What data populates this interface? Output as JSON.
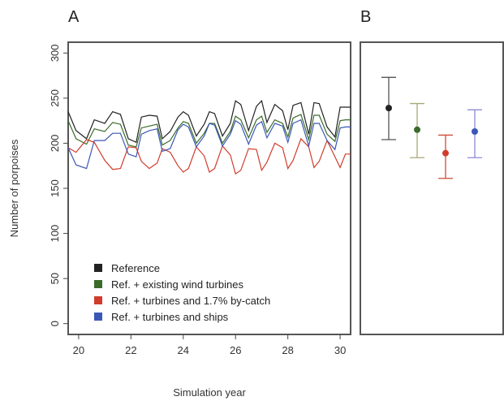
{
  "panels": {
    "a_label": "A",
    "b_label": "B"
  },
  "chart_data": [
    {
      "panel": "A",
      "type": "line",
      "xlabel": "Simulation year",
      "ylabel": "Number of porpoises",
      "xlim": [
        19.6,
        30.4
      ],
      "ylim": [
        -12,
        312
      ],
      "xticks": [
        20,
        22,
        24,
        26,
        28,
        30
      ],
      "yticks": [
        0,
        50,
        100,
        150,
        200,
        250,
        300
      ],
      "grid": false,
      "legend_position": "bottom-left",
      "series": [
        {
          "name": "Reference",
          "color": "#222222",
          "x": [
            19.6,
            19.9,
            20.3,
            20.6,
            21.0,
            21.3,
            21.6,
            21.9,
            22.2,
            22.4,
            22.7,
            23.0,
            23.2,
            23.5,
            23.8,
            24.0,
            24.2,
            24.5,
            24.8,
            25.0,
            25.2,
            25.5,
            25.8,
            26.0,
            26.2,
            26.5,
            26.8,
            27.0,
            27.2,
            27.5,
            27.8,
            28.0,
            28.2,
            28.5,
            28.8,
            29.0,
            29.2,
            29.5,
            29.8,
            30.0,
            30.2,
            30.4
          ],
          "y": [
            235,
            214,
            205,
            226,
            222,
            235,
            232,
            205,
            201,
            229,
            231,
            230,
            205,
            213,
            229,
            235,
            231,
            208,
            221,
            235,
            233,
            208,
            222,
            247,
            243,
            214,
            241,
            247,
            223,
            243,
            236,
            215,
            242,
            245,
            210,
            245,
            244,
            218,
            207,
            240,
            240,
            240
          ]
        },
        {
          "name": "Ref. + existing wind turbines",
          "color": "#3a6b2a",
          "x": [
            19.6,
            19.9,
            20.3,
            20.6,
            21.0,
            21.3,
            21.6,
            21.9,
            22.2,
            22.4,
            22.7,
            23.0,
            23.2,
            23.5,
            23.8,
            24.0,
            24.2,
            24.5,
            24.8,
            25.0,
            25.2,
            25.5,
            25.8,
            26.0,
            26.2,
            26.5,
            26.8,
            27.0,
            27.2,
            27.5,
            27.8,
            28.0,
            28.2,
            28.5,
            28.8,
            29.0,
            29.2,
            29.5,
            29.8,
            30.0,
            30.2,
            30.4
          ],
          "y": [
            225,
            205,
            199,
            216,
            213,
            223,
            221,
            198,
            196,
            217,
            219,
            221,
            198,
            203,
            217,
            224,
            222,
            200,
            211,
            222,
            222,
            200,
            213,
            230,
            226,
            206,
            226,
            230,
            212,
            226,
            222,
            207,
            228,
            232,
            204,
            231,
            231,
            210,
            202,
            225,
            226,
            226
          ]
        },
        {
          "name": "Ref. + turbines and 1.7% by-catch",
          "color": "#d03c2c",
          "x": [
            19.6,
            19.9,
            20.3,
            20.6,
            21.0,
            21.3,
            21.6,
            21.9,
            22.2,
            22.4,
            22.7,
            23.0,
            23.2,
            23.5,
            23.8,
            24.0,
            24.2,
            24.5,
            24.8,
            25.0,
            25.2,
            25.5,
            25.8,
            26.0,
            26.2,
            26.5,
            26.8,
            27.0,
            27.2,
            27.5,
            27.8,
            28.0,
            28.2,
            28.5,
            28.8,
            29.0,
            29.2,
            29.5,
            29.8,
            30.0,
            30.2,
            30.4
          ],
          "y": [
            195,
            190,
            204,
            201,
            181,
            171,
            172,
            196,
            195,
            180,
            172,
            178,
            194,
            190,
            175,
            168,
            172,
            196,
            186,
            168,
            172,
            197,
            187,
            166,
            170,
            194,
            193,
            170,
            179,
            200,
            195,
            172,
            181,
            205,
            196,
            173,
            180,
            203,
            185,
            173,
            188,
            188
          ]
        },
        {
          "name": "Ref. + turbines and ships",
          "color": "#3b57b6",
          "x": [
            19.6,
            19.9,
            20.3,
            20.6,
            21.0,
            21.3,
            21.6,
            21.9,
            22.2,
            22.4,
            22.7,
            23.0,
            23.2,
            23.5,
            23.8,
            24.0,
            24.2,
            24.5,
            24.8,
            25.0,
            25.2,
            25.5,
            25.8,
            26.0,
            26.2,
            26.5,
            26.8,
            27.0,
            27.2,
            27.5,
            27.8,
            28.0,
            28.2,
            28.5,
            28.8,
            29.0,
            29.2,
            29.5,
            29.8,
            30.0,
            30.2,
            30.4
          ],
          "y": [
            195,
            176,
            172,
            203,
            203,
            211,
            211,
            188,
            185,
            210,
            214,
            216,
            191,
            194,
            215,
            221,
            218,
            196,
            208,
            222,
            220,
            197,
            210,
            225,
            221,
            199,
            220,
            224,
            206,
            222,
            219,
            201,
            222,
            226,
            197,
            222,
            222,
            203,
            193,
            217,
            218,
            218
          ]
        }
      ]
    },
    {
      "panel": "B",
      "type": "errorbar",
      "ylim": [
        -12,
        312
      ],
      "grid": false,
      "points": [
        {
          "series": "Reference",
          "color": "#222222",
          "mean": 239,
          "low": 204,
          "high": 273
        },
        {
          "series": "Ref. + existing wind turbines",
          "color": "#3a6b2a",
          "mean": 215,
          "low": 184,
          "high": 244
        },
        {
          "series": "Ref. + turbines and 1.7% by-catch",
          "color": "#d03c2c",
          "mean": 189,
          "low": 161,
          "high": 209
        },
        {
          "series": "Ref. + turbines and ships",
          "color": "#3b57b6",
          "mean": 213,
          "low": 184,
          "high": 237
        }
      ],
      "bar_colors": [
        "#555555",
        "#a8a878",
        "#d04a3a",
        "#8c8ad8"
      ]
    }
  ]
}
